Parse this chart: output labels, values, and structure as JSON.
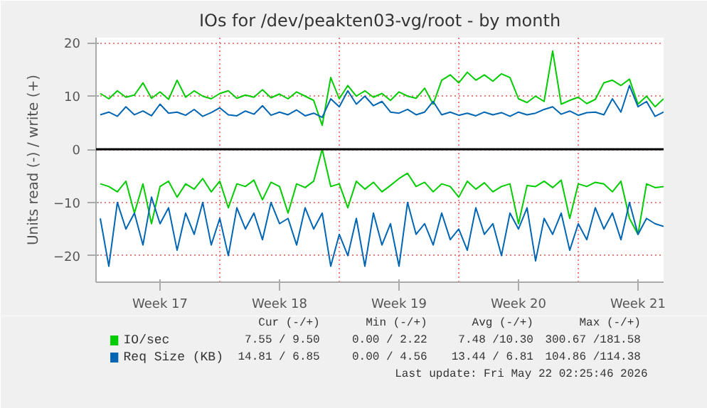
{
  "chart_data": {
    "type": "line",
    "title": "IOs for /dev/peakten03-vg/root - by month",
    "ylabel": "Units read (-) / write (+)",
    "ylim": [
      -25,
      21
    ],
    "yticks": [
      -20,
      -10,
      0,
      10,
      20
    ],
    "categories": [
      null,
      null,
      null,
      null,
      null,
      null,
      null,
      "Week 17",
      null,
      null,
      null,
      null,
      null,
      null,
      null,
      null,
      null,
      null,
      null,
      null,
      null,
      "Week 18",
      null,
      null,
      null,
      null,
      null,
      null,
      null,
      null,
      null,
      null,
      null,
      null,
      null,
      "Week 19",
      null,
      null,
      null,
      null,
      null,
      null,
      null,
      null,
      null,
      null,
      null,
      null,
      null,
      "Week 20",
      null,
      null,
      null,
      null,
      null,
      null,
      null,
      null,
      null,
      null,
      null,
      null,
      null,
      "Week 21",
      null,
      null,
      null
    ],
    "grid": true,
    "legend": "bottom left",
    "marker": "none",
    "line_style": "solid",
    "ref_lines": [
      {
        "axis": "y",
        "value": 0,
        "label": null,
        "color": "#000000"
      }
    ],
    "annotations": [
      "Cur (-/+)",
      "Min (-/+)",
      "Avg (-/+)",
      "Max (-/+)",
      "7.55 / 9.50",
      "0.00 / 2.22",
      "7.48 /10.30",
      "300.67 /181.58",
      "14.81 / 6.85",
      "0.00 / 4.56",
      "13.44 / 6.81",
      "104.86 /114.38",
      "Last update: Fri May 22 02:25:46 2026"
    ],
    "series": [
      {
        "name": "IO/sec",
        "color": "#00cc00",
        "values": [
          10.5,
          9.5,
          11,
          9.8,
          10.2,
          12.5,
          9.6,
          10.8,
          9.4,
          13,
          9.8,
          11,
          10,
          9.5,
          10.5,
          11,
          9.6,
          10.2,
          9.8,
          11.2,
          9.7,
          10.4,
          9.5,
          10.8,
          10,
          9.2,
          4.5,
          13.5,
          9.5,
          12,
          10,
          11,
          9.8,
          10.5,
          9.2,
          10.8,
          10,
          9.6,
          11.5,
          8.5,
          13,
          14,
          12.5,
          14.5,
          13,
          14,
          12.8,
          14.2,
          13.5,
          9.5,
          8.8,
          10,
          9,
          18.5,
          8.5,
          9.2,
          9.8,
          8.6,
          9.4,
          12.5,
          13,
          12,
          13.2,
          8.5,
          10,
          8,
          9.5
        ]
      },
      {
        "name": "Req Size (KB)",
        "color": "#0066b3",
        "values": [
          6.5,
          7,
          6.2,
          8,
          6.5,
          7.2,
          6.3,
          8.5,
          6.8,
          7,
          6.4,
          7.5,
          6.2,
          6.9,
          7.8,
          6.5,
          6.3,
          7.2,
          6.6,
          8.2,
          6.4,
          7,
          6.5,
          7.4,
          6.3,
          6.8,
          6,
          9.5,
          8,
          11,
          8.5,
          10,
          8.2,
          9,
          7,
          6.8,
          7.5,
          6.5,
          7,
          9,
          6.5,
          7,
          6.4,
          6.8,
          6.3,
          7,
          6.5,
          6.9,
          6.2,
          7,
          6.5,
          6.8,
          7.5,
          8,
          6.6,
          7.2,
          6.4,
          6.9,
          7,
          6.5,
          9.5,
          7,
          12,
          8,
          9,
          6.2,
          7
        ]
      },
      {
        "color": "#00cc00",
        "values": [
          -6.5,
          -7,
          -8,
          -6,
          -12,
          -6.5,
          -14,
          -7,
          -6,
          -9,
          -6.5,
          -7.5,
          -5.5,
          -8,
          -6,
          -11,
          -6.5,
          -7,
          -5.8,
          -9.5,
          -6.2,
          -7,
          -12,
          -6.5,
          -7.2,
          -6,
          0,
          -7,
          -6.5,
          -11,
          -6,
          -7.5,
          -6.2,
          -8,
          -6.8,
          -5.5,
          -4.5,
          -7,
          -6.2,
          -8,
          -6.5,
          -7,
          -9,
          -6,
          -7.5,
          -6.3,
          -8,
          -7,
          -6.5,
          -14,
          -6.8,
          -7,
          -6,
          -7.2,
          -5.8,
          -13,
          -6.5,
          -7,
          -6.2,
          -6.5,
          -8,
          -6,
          -13,
          -16,
          -6.5,
          -7.2,
          -7
        ]
      },
      {
        "color": "#0066b3",
        "values": [
          -13,
          -22,
          -10,
          -15,
          -12,
          -18,
          -9,
          -14,
          -11,
          -19,
          -12,
          -16,
          -10,
          -18,
          -13,
          -20,
          -11,
          -15,
          -12,
          -17,
          -10,
          -14,
          -13,
          -18,
          -11,
          -15,
          -12,
          -22,
          -16,
          -20,
          -13,
          -22,
          -12,
          -18,
          -14,
          -22,
          -10,
          -16,
          -14,
          -18,
          -12,
          -17,
          -15,
          -19,
          -11,
          -16,
          -14,
          -20,
          -12,
          -15,
          -11,
          -21,
          -13,
          -16,
          -12,
          -19,
          -14,
          -17,
          -11,
          -15,
          -12,
          -17,
          -10,
          -16,
          -13,
          -14,
          -14.5
        ]
      }
    ]
  }
}
